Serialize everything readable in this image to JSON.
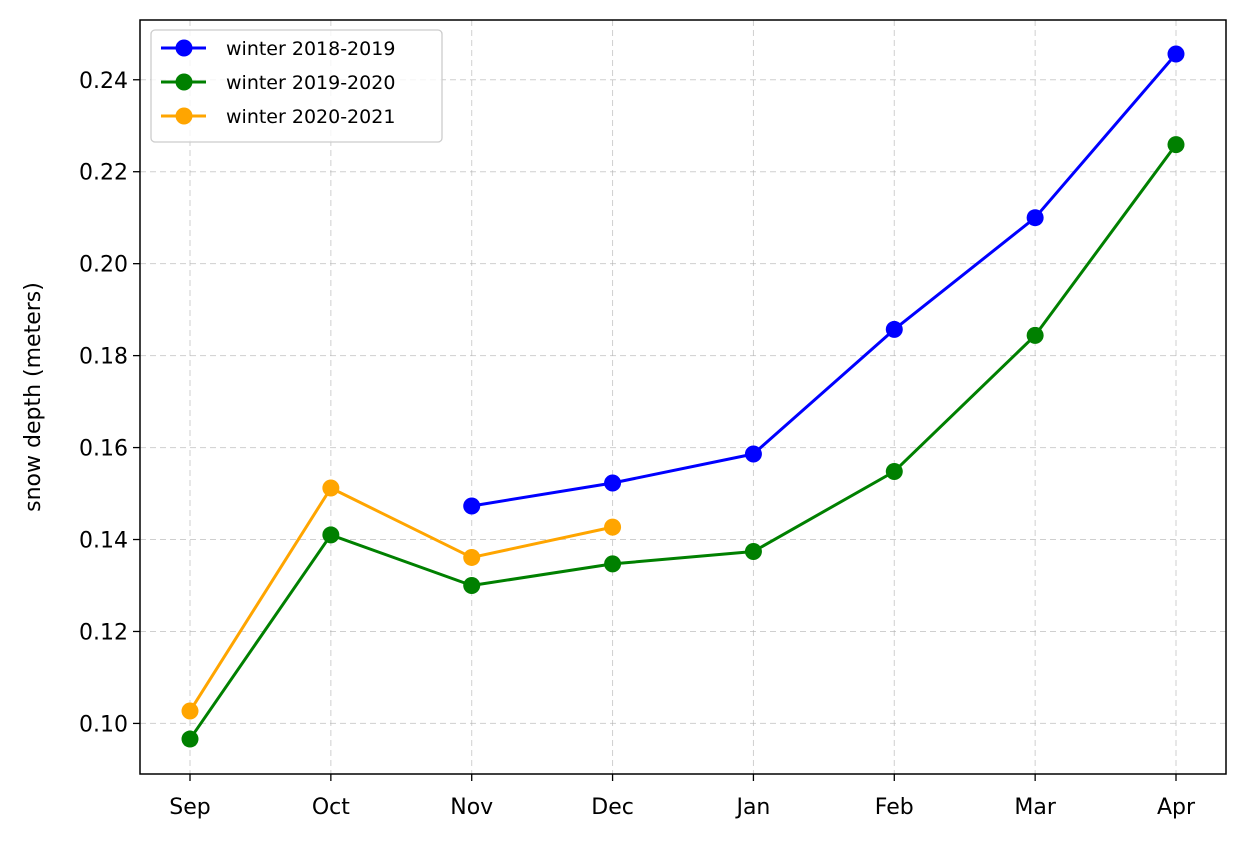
{
  "chart_data": {
    "type": "line",
    "categories": [
      "Sep",
      "Oct",
      "Nov",
      "Dec",
      "Jan",
      "Feb",
      "Mar",
      "Apr"
    ],
    "ylabel": "snow depth (meters)",
    "xlabel": "",
    "ylim": [
      0.089,
      0.253
    ],
    "yticks": [
      "0.10",
      "0.12",
      "0.14",
      "0.16",
      "0.18",
      "0.20",
      "0.22",
      "0.24"
    ],
    "grid": true,
    "legend_position": "top-left",
    "series": [
      {
        "name": "winter 2018-2019",
        "color": "#0000ff",
        "values": [
          null,
          null,
          0.1473,
          0.1523,
          0.1586,
          0.1857,
          0.21,
          0.2456
        ]
      },
      {
        "name": "winter 2019-2020",
        "color": "#008000",
        "values": [
          0.0966,
          0.141,
          0.13,
          0.1347,
          0.1374,
          0.1548,
          0.1844,
          0.2259
        ]
      },
      {
        "name": "winter 2020-2021",
        "color": "#ffa500",
        "values": [
          0.1027,
          0.1512,
          0.1361,
          0.1427,
          null,
          null,
          null,
          null
        ]
      }
    ]
  }
}
